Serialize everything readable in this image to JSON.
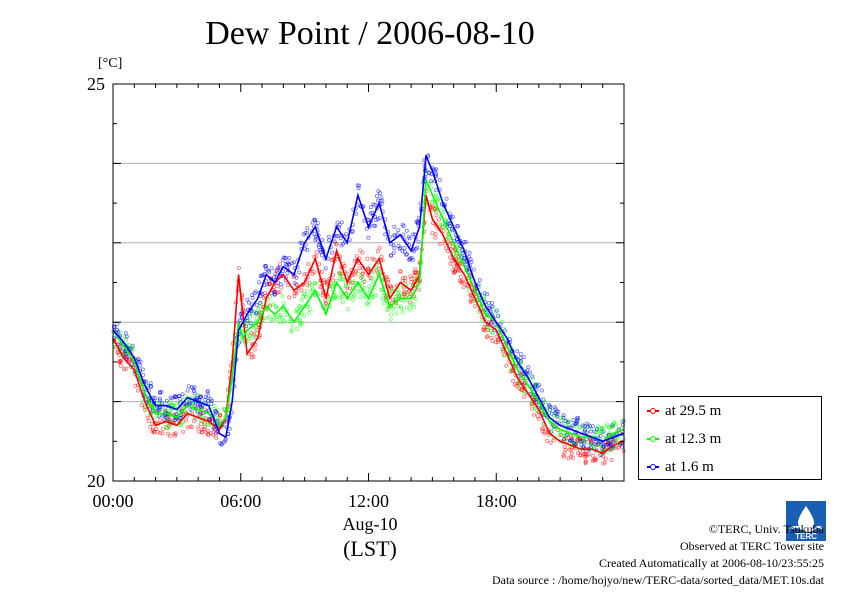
{
  "chart_data": {
    "type": "scatter",
    "title": "Dew Point / 2006-08-10",
    "ylabel": "[°C]",
    "xlabel": "Aug-10",
    "xlabel2": "(LST)",
    "xlim": [
      0,
      24
    ],
    "ylim": [
      20,
      25
    ],
    "xticks": [
      {
        "v": 0,
        "label": "00:00"
      },
      {
        "v": 6,
        "label": "06:00"
      },
      {
        "v": 12,
        "label": "12:00"
      },
      {
        "v": 18,
        "label": "18:00"
      }
    ],
    "yticks": [
      {
        "v": 20,
        "label": "20"
      },
      {
        "v": 25,
        "label": "25"
      }
    ],
    "grid": "horizontal",
    "legend_position": "bottom-right outside",
    "series": [
      {
        "name": "at 29.5 m",
        "color": "#ff0000",
        "points": [
          [
            0,
            21.8
          ],
          [
            0.5,
            21.55
          ],
          [
            1,
            21.4
          ],
          [
            1.5,
            21.0
          ],
          [
            2,
            20.7
          ],
          [
            2.5,
            20.75
          ],
          [
            3,
            20.7
          ],
          [
            3.5,
            20.85
          ],
          [
            4,
            20.8
          ],
          [
            4.5,
            20.75
          ],
          [
            5,
            20.65
          ],
          [
            5.3,
            20.8
          ],
          [
            5.6,
            21.5
          ],
          [
            5.9,
            22.6
          ],
          [
            6.1,
            22.1
          ],
          [
            6.3,
            21.6
          ],
          [
            6.8,
            21.8
          ],
          [
            7.2,
            22.3
          ],
          [
            7.6,
            22.5
          ],
          [
            8,
            22.6
          ],
          [
            8.5,
            22.4
          ],
          [
            9,
            22.5
          ],
          [
            9.5,
            22.8
          ],
          [
            10,
            22.3
          ],
          [
            10.5,
            22.9
          ],
          [
            11,
            22.5
          ],
          [
            11.5,
            22.8
          ],
          [
            12,
            22.6
          ],
          [
            12.5,
            22.8
          ],
          [
            13,
            22.3
          ],
          [
            13.5,
            22.5
          ],
          [
            14,
            22.4
          ],
          [
            14.4,
            22.6
          ],
          [
            14.7,
            23.6
          ],
          [
            15,
            23.3
          ],
          [
            15.5,
            23.1
          ],
          [
            16,
            22.8
          ],
          [
            16.5,
            22.6
          ],
          [
            17,
            22.3
          ],
          [
            17.5,
            22.0
          ],
          [
            18,
            21.9
          ],
          [
            18.5,
            21.6
          ],
          [
            19,
            21.3
          ],
          [
            19.5,
            21.1
          ],
          [
            20,
            20.9
          ],
          [
            20.5,
            20.6
          ],
          [
            21,
            20.5
          ],
          [
            21.5,
            20.45
          ],
          [
            22,
            20.4
          ],
          [
            22.5,
            20.4
          ],
          [
            23,
            20.35
          ],
          [
            23.5,
            20.45
          ],
          [
            24,
            20.5
          ]
        ]
      },
      {
        "name": "at 12.3 m",
        "color": "#00ff00",
        "points": [
          [
            0,
            21.9
          ],
          [
            0.5,
            21.7
          ],
          [
            1,
            21.5
          ],
          [
            1.5,
            21.1
          ],
          [
            2,
            20.85
          ],
          [
            2.5,
            20.85
          ],
          [
            3,
            20.8
          ],
          [
            3.5,
            20.95
          ],
          [
            4,
            20.9
          ],
          [
            4.5,
            20.85
          ],
          [
            5,
            20.7
          ],
          [
            5.3,
            20.8
          ],
          [
            5.6,
            21.3
          ],
          [
            5.9,
            22.0
          ],
          [
            6.1,
            21.8
          ],
          [
            6.3,
            21.9
          ],
          [
            6.8,
            22.0
          ],
          [
            7.2,
            22.2
          ],
          [
            7.6,
            22.1
          ],
          [
            8,
            22.2
          ],
          [
            8.5,
            22.0
          ],
          [
            9,
            22.2
          ],
          [
            9.5,
            22.4
          ],
          [
            10,
            22.1
          ],
          [
            10.5,
            22.5
          ],
          [
            11,
            22.3
          ],
          [
            11.5,
            22.5
          ],
          [
            12,
            22.3
          ],
          [
            12.5,
            22.6
          ],
          [
            13,
            22.2
          ],
          [
            13.5,
            22.3
          ],
          [
            14,
            22.3
          ],
          [
            14.4,
            22.5
          ],
          [
            14.7,
            23.8
          ],
          [
            15,
            23.6
          ],
          [
            15.5,
            23.3
          ],
          [
            16,
            23.0
          ],
          [
            16.5,
            22.7
          ],
          [
            17,
            22.4
          ],
          [
            17.5,
            22.1
          ],
          [
            18,
            22.0
          ],
          [
            18.5,
            21.7
          ],
          [
            19,
            21.4
          ],
          [
            19.5,
            21.2
          ],
          [
            20,
            21.0
          ],
          [
            20.5,
            20.75
          ],
          [
            21,
            20.65
          ],
          [
            21.5,
            20.6
          ],
          [
            22,
            20.55
          ],
          [
            22.5,
            20.55
          ],
          [
            23,
            20.5
          ],
          [
            23.5,
            20.6
          ],
          [
            24,
            20.65
          ]
        ]
      },
      {
        "name": "at 1.6 m",
        "color": "#0000ff",
        "points": [
          [
            0,
            21.9
          ],
          [
            0.5,
            21.75
          ],
          [
            1,
            21.55
          ],
          [
            1.5,
            21.2
          ],
          [
            2,
            20.95
          ],
          [
            2.5,
            20.95
          ],
          [
            3,
            20.9
          ],
          [
            3.5,
            21.05
          ],
          [
            4,
            21.0
          ],
          [
            4.5,
            20.95
          ],
          [
            5,
            20.6
          ],
          [
            5.3,
            20.55
          ],
          [
            5.6,
            21.0
          ],
          [
            5.9,
            21.9
          ],
          [
            6.1,
            22.0
          ],
          [
            6.3,
            22.1
          ],
          [
            6.8,
            22.3
          ],
          [
            7.2,
            22.6
          ],
          [
            7.6,
            22.5
          ],
          [
            8,
            22.7
          ],
          [
            8.5,
            22.6
          ],
          [
            9,
            23.0
          ],
          [
            9.5,
            23.2
          ],
          [
            10,
            22.8
          ],
          [
            10.5,
            23.2
          ],
          [
            11,
            23.0
          ],
          [
            11.5,
            23.6
          ],
          [
            12,
            23.2
          ],
          [
            12.5,
            23.5
          ],
          [
            13,
            23.0
          ],
          [
            13.5,
            23.1
          ],
          [
            14,
            22.9
          ],
          [
            14.4,
            23.2
          ],
          [
            14.7,
            24.1
          ],
          [
            15,
            23.9
          ],
          [
            15.5,
            23.5
          ],
          [
            16,
            23.2
          ],
          [
            16.5,
            22.9
          ],
          [
            17,
            22.5
          ],
          [
            17.5,
            22.2
          ],
          [
            18,
            22.0
          ],
          [
            18.5,
            21.8
          ],
          [
            19,
            21.5
          ],
          [
            19.5,
            21.3
          ],
          [
            20,
            21.05
          ],
          [
            20.5,
            20.8
          ],
          [
            21,
            20.7
          ],
          [
            21.5,
            20.65
          ],
          [
            22,
            20.6
          ],
          [
            22.5,
            20.55
          ],
          [
            23,
            20.5
          ],
          [
            23.5,
            20.55
          ],
          [
            24,
            20.6
          ]
        ]
      }
    ]
  },
  "credits": {
    "line1": "©TERC, Univ. Tsukuba",
    "line2": "Observed at TERC Tower site",
    "line3": "Created Automatically at 2006-08-10/23:55:25",
    "line4": "Data source : /home/hojyo/new/TERC-data/sorted_data/MET.10s.dat"
  },
  "logo": {
    "text": "TERC",
    "color": "#1a5fb4"
  }
}
